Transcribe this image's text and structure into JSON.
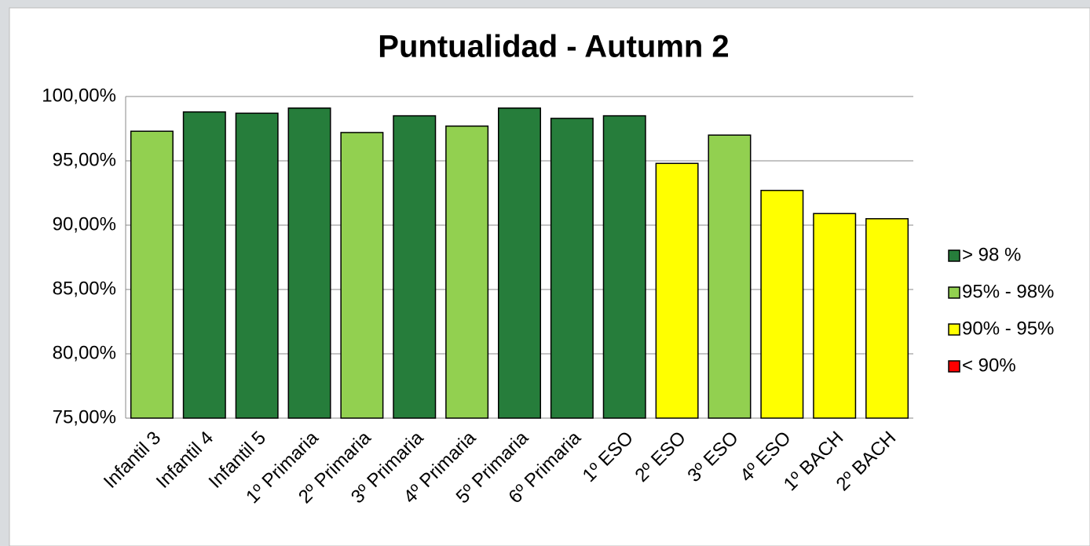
{
  "chart_data": {
    "type": "bar",
    "title": "Puntualidad - Autumn 2",
    "categories": [
      "Infantil 3",
      "Infantil 4",
      "Infantil 5",
      "1º Primaria",
      "2º Primaria",
      "3º Primaria",
      "4º Primaria",
      "5º Primaria",
      "6º Primaria",
      "1º ESO",
      "2º ESO",
      "3º ESO",
      "4º ESO",
      "1º BACH",
      "2º BACH"
    ],
    "series": [
      {
        "name": "> 98 %",
        "color": "#267d3b",
        "values": [
          null,
          98.8,
          98.7,
          99.1,
          null,
          98.5,
          null,
          99.1,
          98.3,
          98.5,
          null,
          null,
          null,
          null,
          null
        ]
      },
      {
        "name": "95% - 98%",
        "color": "#92d050",
        "values": [
          97.3,
          null,
          null,
          null,
          97.2,
          null,
          97.7,
          null,
          null,
          null,
          null,
          97.0,
          null,
          null,
          null
        ]
      },
      {
        "name": "90% -  95%",
        "color": "#ffff00",
        "values": [
          null,
          null,
          null,
          null,
          null,
          null,
          null,
          null,
          null,
          null,
          94.8,
          null,
          92.7,
          90.9,
          90.5
        ]
      },
      {
        "name": "< 90%",
        "color": "#ff0000",
        "values": [
          null,
          null,
          null,
          null,
          null,
          null,
          null,
          null,
          null,
          null,
          null,
          null,
          null,
          null,
          null
        ]
      }
    ],
    "ylim": [
      75,
      100
    ],
    "yticks": [
      {
        "value": 75,
        "label": "75,00%"
      },
      {
        "value": 80,
        "label": "80,00%"
      },
      {
        "value": 85,
        "label": "85,00%"
      },
      {
        "value": 90,
        "label": "90,00%"
      },
      {
        "value": 95,
        "label": "95,00%"
      },
      {
        "value": 100,
        "label": "100,00%"
      }
    ],
    "grid": true,
    "legend": "right"
  }
}
